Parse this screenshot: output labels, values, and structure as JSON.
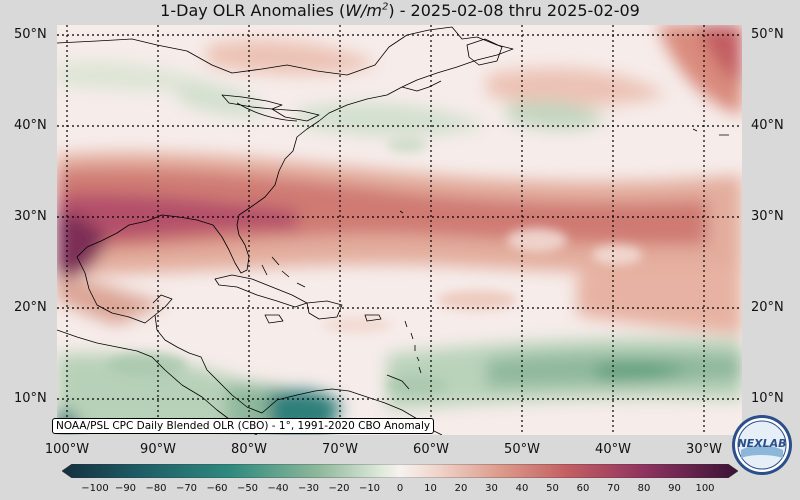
{
  "title_prefix": "1-Day OLR Anomalies (",
  "title_unit_base": "W/m",
  "title_unit_exp": "2",
  "title_suffix": ") - 2025-02-08 thru 2025-02-09",
  "lat_labels": [
    "50°N",
    "40°N",
    "30°N",
    "20°N",
    "10°N"
  ],
  "lon_labels": [
    "100°W",
    "90°W",
    "80°W",
    "70°W",
    "60°W",
    "50°W",
    "40°W",
    "30°W"
  ],
  "caption": "NOAA/PSL CPC Daily Blended OLR (CBO) - 1°, 1991-2020 CBO Anomaly",
  "colorbar_ticks": [
    "−100",
    "−90",
    "−80",
    "−70",
    "−60",
    "−50",
    "−40",
    "−30",
    "−20",
    "−10",
    "0",
    "10",
    "20",
    "30",
    "40",
    "50",
    "60",
    "70",
    "80",
    "90",
    "100"
  ],
  "logo_text": "NEXLAB",
  "colors": {
    "strong_positive": "#6e1f4a",
    "positive": "#c8666a",
    "weak_positive": "#e8b3a4",
    "neutral": "#f6ecea",
    "weak_negative": "#c5dac4",
    "negative": "#5f9e7d",
    "strong_negative": "#1f5e67"
  }
}
